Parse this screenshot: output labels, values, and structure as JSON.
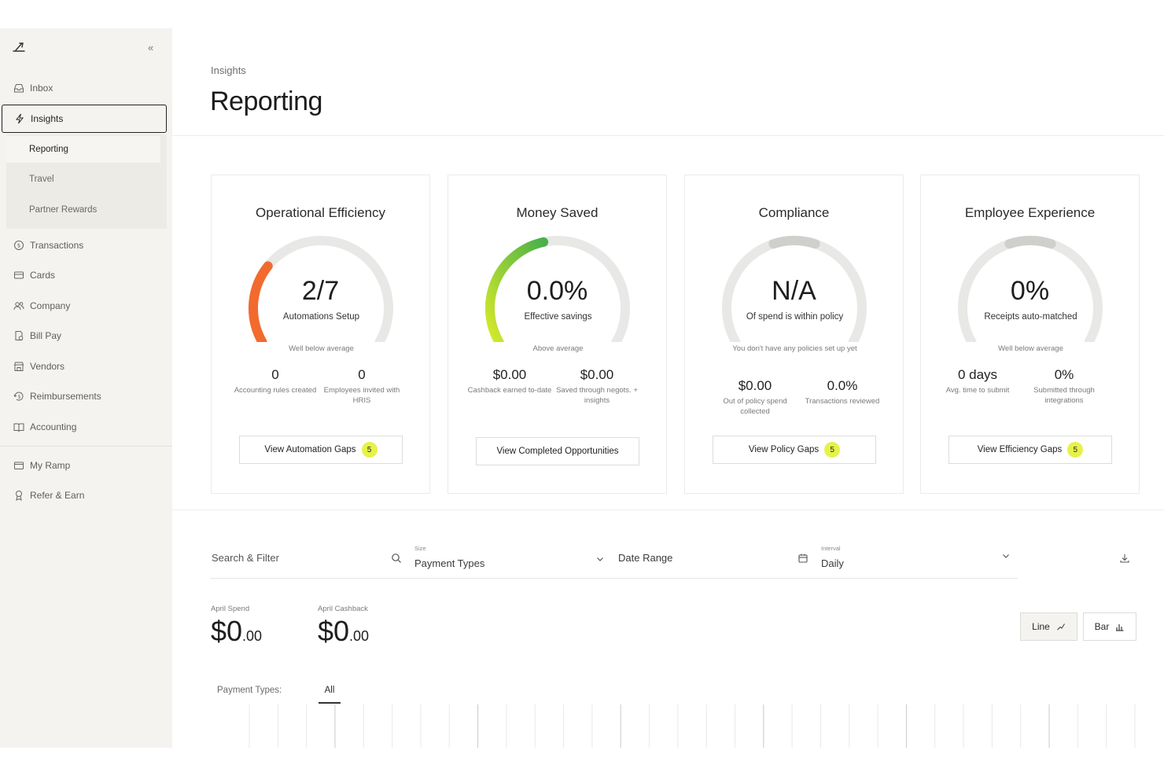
{
  "sidebar": {
    "collapse_glyph": "«",
    "items": [
      {
        "label": "Inbox",
        "icon": "inbox-icon"
      },
      {
        "label": "Insights",
        "icon": "lightning-icon"
      },
      {
        "label": "Transactions",
        "icon": "dollar-circle-icon"
      },
      {
        "label": "Cards",
        "icon": "card-icon"
      },
      {
        "label": "Company",
        "icon": "people-icon"
      },
      {
        "label": "Bill Pay",
        "icon": "bill-icon"
      },
      {
        "label": "Vendors",
        "icon": "store-icon"
      },
      {
        "label": "Reimbursements",
        "icon": "reimburse-icon"
      },
      {
        "label": "Accounting",
        "icon": "book-icon"
      },
      {
        "label": "My Ramp",
        "icon": "wallet-icon"
      },
      {
        "label": "Refer & Earn",
        "icon": "award-icon"
      }
    ],
    "sub_items": [
      {
        "label": "Reporting"
      },
      {
        "label": "Travel"
      },
      {
        "label": "Partner Rewards"
      }
    ]
  },
  "header": {
    "breadcrumb": "Insights",
    "title": "Reporting"
  },
  "cards": [
    {
      "title": "Operational Efficiency",
      "value": "2/7",
      "label": "Automations Setup",
      "note": "Well below average",
      "gauge_fraction": 0.2857,
      "gauge_color": "#f26a2e",
      "stats": [
        {
          "value": "0",
          "label": "Accounting rules created"
        },
        {
          "value": "0",
          "label": "Employees invited with HRIS"
        }
      ],
      "button": "View Automation Gaps",
      "badge": "5"
    },
    {
      "title": "Money Saved",
      "value": "0.0%",
      "label": "Effective savings",
      "note": "Above average",
      "gauge_fraction": 0.45,
      "gauge_color": "#7cc63f",
      "stats": [
        {
          "value": "$0.00",
          "label": "Cashback earned to-date"
        },
        {
          "value": "$0.00",
          "label": "Saved through negots. + insights"
        }
      ],
      "button": "View Completed Opportunities",
      "badge": ""
    },
    {
      "title": "Compliance",
      "value": "N/A",
      "label": "Of spend is within policy",
      "note": "You don't have any policies set up yet",
      "gauge_fraction": 0,
      "gauge_color": "#cfcfcc",
      "stats": [
        {
          "value": "$0.00",
          "label": "Out of policy spend collected"
        },
        {
          "value": "0.0%",
          "label": "Transactions reviewed"
        }
      ],
      "button": "View Policy Gaps",
      "badge": "5"
    },
    {
      "title": "Employee Experience",
      "value": "0%",
      "label": "Receipts auto-matched",
      "note": "Well below average",
      "gauge_fraction": 0,
      "gauge_color": "#cfcfcc",
      "stats": [
        {
          "value": "0 days",
          "label": "Avg. time to submit"
        },
        {
          "value": "0%",
          "label": "Submitted through integrations"
        }
      ],
      "button": "View Efficiency Gaps",
      "badge": "5"
    }
  ],
  "filters": {
    "search_placeholder": "Search & Filter",
    "size_label": "Size",
    "size_value": "Payment Types",
    "date_range": "Date Range",
    "interval_label": "Interval",
    "interval_value": "Daily"
  },
  "summary": {
    "april_spend_label": "April Spend",
    "april_spend_value": "$0",
    "april_spend_cents": ".00",
    "april_cashback_label": "April Cashback",
    "april_cashback_value": "$0",
    "april_cashback_cents": ".00"
  },
  "chart_toggle": {
    "line": "Line",
    "bar": "Bar"
  },
  "payment_types": {
    "label": "Payment Types:",
    "tab_all": "All"
  },
  "colors": {
    "accent_badge": "#e6f24a",
    "gauge_track": "#e8e8e6",
    "sidebar_bg": "#f4f3ef"
  }
}
